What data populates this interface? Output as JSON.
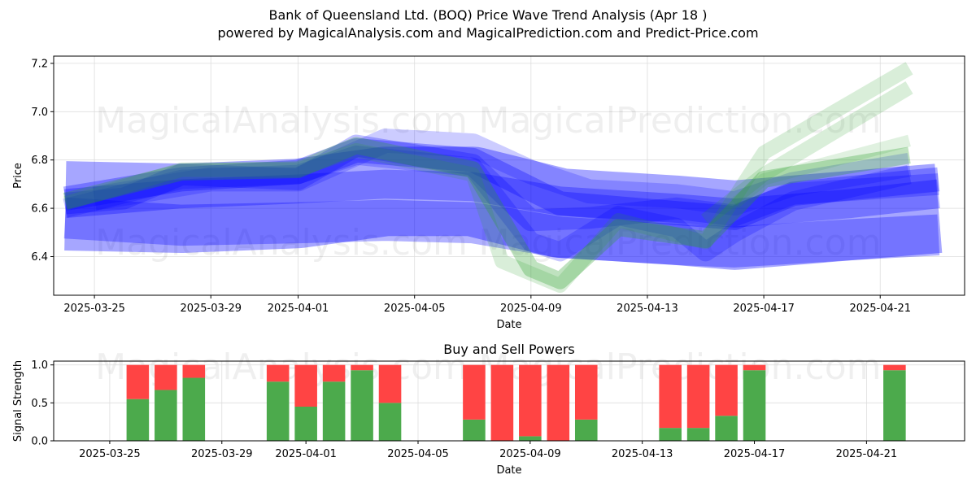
{
  "header": {
    "title": "Bank of Queensland Ltd. (BOQ) Price Wave Trend Analysis (Apr 18 )",
    "subtitle": "powered by MagicalAnalysis.com and MagicalPrediction.com and Predict-Price.com"
  },
  "watermarks": [
    "MagicalAnalysis.com",
    "MagicalPrediction.com"
  ],
  "colors": {
    "blue": "#0000ff",
    "green": "#2ca02c",
    "buy": "#4caa4c",
    "sell": "#ff4444"
  },
  "chart_data": [
    {
      "type": "area",
      "title": "",
      "xlabel": "Date",
      "ylabel": "Price",
      "x_tick_labels": [
        "2025-03-25",
        "2025-03-29",
        "2025-04-01",
        "2025-04-05",
        "2025-04-09",
        "2025-04-13",
        "2025-04-17",
        "2025-04-21"
      ],
      "x_tick_dates": [
        "2025-03-25",
        "2025-03-29",
        "2025-04-01",
        "2025-04-05",
        "2025-04-09",
        "2025-04-13",
        "2025-04-17",
        "2025-04-21"
      ],
      "y_ticks": [
        6.4,
        6.6,
        6.8,
        7.0,
        7.2
      ],
      "xlim": [
        "2025-03-23.6",
        "2025-04-23.9"
      ],
      "ylim": [
        6.24,
        7.23
      ],
      "grid": true,
      "series": [
        {
          "color": "blue",
          "opacity": 0.35,
          "width": 0.37,
          "points": [
            [
              "2025-03-24",
              6.61
            ],
            [
              "2025-03-28",
              6.6
            ],
            [
              "2025-04-01",
              6.62
            ],
            [
              "2025-04-04",
              6.67
            ],
            [
              "2025-04-07",
              6.67
            ],
            [
              "2025-04-10",
              6.58
            ],
            [
              "2025-04-14",
              6.55
            ],
            [
              "2025-04-16",
              6.53
            ],
            [
              "2025-04-20",
              6.57
            ],
            [
              "2025-04-23",
              6.6
            ]
          ]
        },
        {
          "color": "blue",
          "opacity": 0.3,
          "width": 0.17,
          "points": [
            [
              "2025-03-24",
              6.56
            ],
            [
              "2025-03-28",
              6.53
            ],
            [
              "2025-04-01",
              6.54
            ],
            [
              "2025-04-04",
              6.55
            ],
            [
              "2025-04-07",
              6.54
            ],
            [
              "2025-04-10",
              6.48
            ],
            [
              "2025-04-14",
              6.45
            ],
            [
              "2025-04-16",
              6.44
            ],
            [
              "2025-04-20",
              6.47
            ],
            [
              "2025-04-23",
              6.49
            ]
          ]
        },
        {
          "color": "blue",
          "opacity": 0.3,
          "width": 0.12,
          "points": [
            [
              "2025-03-24",
              6.62
            ],
            [
              "2025-03-28",
              6.66
            ],
            [
              "2025-04-01",
              6.68
            ],
            [
              "2025-04-04",
              6.7
            ],
            [
              "2025-04-07",
              6.69
            ],
            [
              "2025-04-10",
              6.63
            ],
            [
              "2025-04-14",
              6.6
            ],
            [
              "2025-04-16",
              6.58
            ],
            [
              "2025-04-20",
              6.62
            ],
            [
              "2025-04-23",
              6.66
            ]
          ]
        },
        {
          "color": "blue",
          "opacity": 0.3,
          "width": 0.1,
          "points": [
            [
              "2025-03-24",
              6.64
            ],
            [
              "2025-03-28",
              6.72
            ],
            [
              "2025-04-01",
              6.75
            ],
            [
              "2025-04-03",
              6.84
            ],
            [
              "2025-04-07",
              6.8
            ],
            [
              "2025-04-10",
              6.62
            ],
            [
              "2025-04-14",
              6.58
            ],
            [
              "2025-04-16",
              6.56
            ],
            [
              "2025-04-18",
              6.66
            ],
            [
              "2025-04-23",
              6.72
            ]
          ]
        },
        {
          "color": "blue",
          "opacity": 0.25,
          "width": 0.09,
          "points": [
            [
              "2025-03-24",
              6.62
            ],
            [
              "2025-03-26",
              6.64
            ],
            [
              "2025-03-28",
              6.74
            ],
            [
              "2025-04-01",
              6.72
            ],
            [
              "2025-04-03",
              6.86
            ],
            [
              "2025-04-07",
              6.78
            ],
            [
              "2025-04-09",
              6.55
            ],
            [
              "2025-04-11",
              6.56
            ],
            [
              "2025-04-14",
              6.6
            ],
            [
              "2025-04-16",
              6.57
            ],
            [
              "2025-04-18",
              6.66
            ],
            [
              "2025-04-23",
              6.7
            ]
          ]
        },
        {
          "color": "blue",
          "opacity": 0.22,
          "width": 0.08,
          "points": [
            [
              "2025-03-24",
              6.6
            ],
            [
              "2025-03-28",
              6.72
            ],
            [
              "2025-04-01",
              6.74
            ],
            [
              "2025-04-03",
              6.82
            ],
            [
              "2025-04-07",
              6.77
            ],
            [
              "2025-04-09",
              6.46
            ],
            [
              "2025-04-10",
              6.42
            ],
            [
              "2025-04-12",
              6.57
            ],
            [
              "2025-04-14",
              6.52
            ],
            [
              "2025-04-15",
              6.42
            ],
            [
              "2025-04-16",
              6.5
            ],
            [
              "2025-04-18",
              6.63
            ],
            [
              "2025-04-22",
              6.74
            ]
          ]
        },
        {
          "color": "blue",
          "opacity": 0.2,
          "width": 0.1,
          "points": [
            [
              "2025-03-25",
              6.64
            ],
            [
              "2025-03-29",
              6.72
            ],
            [
              "2025-04-01",
              6.72
            ],
            [
              "2025-04-04",
              6.88
            ],
            [
              "2025-04-07",
              6.86
            ],
            [
              "2025-04-09",
              6.75
            ],
            [
              "2025-04-11",
              6.67
            ],
            [
              "2025-04-14",
              6.65
            ],
            [
              "2025-04-16",
              6.62
            ],
            [
              "2025-04-18",
              6.7
            ],
            [
              "2025-04-22",
              6.78
            ]
          ]
        },
        {
          "color": "green",
          "opacity": 0.3,
          "width": 0.07,
          "points": [
            [
              "2025-03-24",
              6.63
            ],
            [
              "2025-03-28",
              6.75
            ],
            [
              "2025-04-01",
              6.76
            ],
            [
              "2025-04-03",
              6.86
            ],
            [
              "2025-04-07",
              6.76
            ],
            [
              "2025-04-09",
              6.35
            ],
            [
              "2025-04-10",
              6.3
            ],
            [
              "2025-04-12",
              6.52
            ],
            [
              "2025-04-15",
              6.47
            ],
            [
              "2025-04-17",
              6.72
            ],
            [
              "2025-04-22",
              6.82
            ]
          ]
        },
        {
          "color": "green",
          "opacity": 0.18,
          "width": 0.06,
          "points": [
            [
              "2025-03-24",
              6.62
            ],
            [
              "2025-03-28",
              6.76
            ],
            [
              "2025-04-01",
              6.76
            ],
            [
              "2025-04-03",
              6.84
            ],
            [
              "2025-04-07",
              6.74
            ],
            [
              "2025-04-08",
              6.38
            ],
            [
              "2025-04-10",
              6.28
            ],
            [
              "2025-04-12",
              6.55
            ],
            [
              "2025-04-15",
              6.46
            ],
            [
              "2025-04-17",
              6.83
            ],
            [
              "2025-04-22",
              7.18
            ]
          ]
        },
        {
          "color": "green",
          "opacity": 0.18,
          "width": 0.06,
          "points": [
            [
              "2025-04-15",
              6.55
            ],
            [
              "2025-04-17",
              6.74
            ],
            [
              "2025-04-22",
              7.1
            ]
          ]
        },
        {
          "color": "green",
          "opacity": 0.15,
          "width": 0.05,
          "points": [
            [
              "2025-04-16",
              6.62
            ],
            [
              "2025-04-17",
              6.72
            ],
            [
              "2025-04-22",
              6.88
            ]
          ]
        }
      ]
    },
    {
      "type": "bar",
      "title": "Buy and Sell Powers",
      "xlabel": "Date",
      "ylabel": "Signal Strength",
      "x_tick_labels": [
        "2025-03-25",
        "2025-03-29",
        "2025-04-01",
        "2025-04-05",
        "2025-04-09",
        "2025-04-13",
        "2025-04-17",
        "2025-04-21"
      ],
      "x_tick_dates": [
        "2025-03-25",
        "2025-03-29",
        "2025-04-01",
        "2025-04-05",
        "2025-04-09",
        "2025-04-13",
        "2025-04-17",
        "2025-04-21"
      ],
      "y_ticks": [
        0.0,
        0.5,
        1.0
      ],
      "xlim": [
        "2025-03-23.0",
        "2025-04-24.5"
      ],
      "ylim": [
        0,
        1.05
      ],
      "grid": true,
      "bars": [
        {
          "date": "2025-03-26",
          "buy": 0.55,
          "sell": 0.45
        },
        {
          "date": "2025-03-27",
          "buy": 0.67,
          "sell": 0.33
        },
        {
          "date": "2025-03-28",
          "buy": 0.83,
          "sell": 0.17
        },
        {
          "date": "2025-03-31",
          "buy": 0.78,
          "sell": 0.22
        },
        {
          "date": "2025-04-01",
          "buy": 0.45,
          "sell": 0.55
        },
        {
          "date": "2025-04-02",
          "buy": 0.78,
          "sell": 0.22
        },
        {
          "date": "2025-04-03",
          "buy": 0.93,
          "sell": 0.07
        },
        {
          "date": "2025-04-04",
          "buy": 0.5,
          "sell": 0.5
        },
        {
          "date": "2025-04-07",
          "buy": 0.28,
          "sell": 0.72
        },
        {
          "date": "2025-04-08",
          "buy": 0.0,
          "sell": 1.0
        },
        {
          "date": "2025-04-09",
          "buy": 0.06,
          "sell": 0.94
        },
        {
          "date": "2025-04-10",
          "buy": 0.0,
          "sell": 1.0
        },
        {
          "date": "2025-04-11",
          "buy": 0.28,
          "sell": 0.72
        },
        {
          "date": "2025-04-14",
          "buy": 0.17,
          "sell": 0.83
        },
        {
          "date": "2025-04-15",
          "buy": 0.17,
          "sell": 0.83
        },
        {
          "date": "2025-04-16",
          "buy": 0.33,
          "sell": 0.67
        },
        {
          "date": "2025-04-17",
          "buy": 0.93,
          "sell": 0.07
        },
        {
          "date": "2025-04-22",
          "buy": 0.93,
          "sell": 0.07
        }
      ]
    }
  ]
}
